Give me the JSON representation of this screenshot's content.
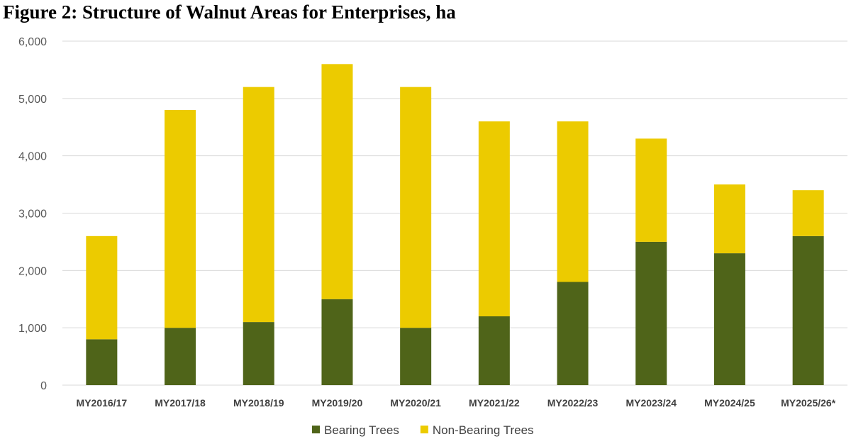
{
  "chart_data": {
    "type": "bar",
    "stacked": true,
    "title": "Figure 2: Structure of Walnut Areas for Enterprises, ha",
    "xlabel": "",
    "ylabel": "",
    "ylim": [
      0,
      6000
    ],
    "yticks": [
      0,
      1000,
      2000,
      3000,
      4000,
      5000,
      6000
    ],
    "ytick_labels": [
      "0",
      "1,000",
      "2,000",
      "3,000",
      "4,000",
      "5,000",
      "6,000"
    ],
    "grid": true,
    "legend_position": "bottom",
    "categories": [
      "MY2016/17",
      "MY2017/18",
      "MY2018/19",
      "MY2019/20",
      "MY2020/21",
      "MY2021/22",
      "MY2022/23",
      "MY2023/24",
      "MY2024/25",
      "MY2025/26*"
    ],
    "series": [
      {
        "name": "Bearing Trees",
        "color": "#4f6419",
        "values": [
          800,
          1000,
          1100,
          1500,
          1000,
          1200,
          1800,
          2500,
          2300,
          2600
        ]
      },
      {
        "name": "Non-Bearing Trees",
        "color": "#eccb00",
        "values": [
          1800,
          3800,
          4100,
          4100,
          4200,
          3400,
          2800,
          1800,
          1200,
          800
        ]
      }
    ]
  }
}
